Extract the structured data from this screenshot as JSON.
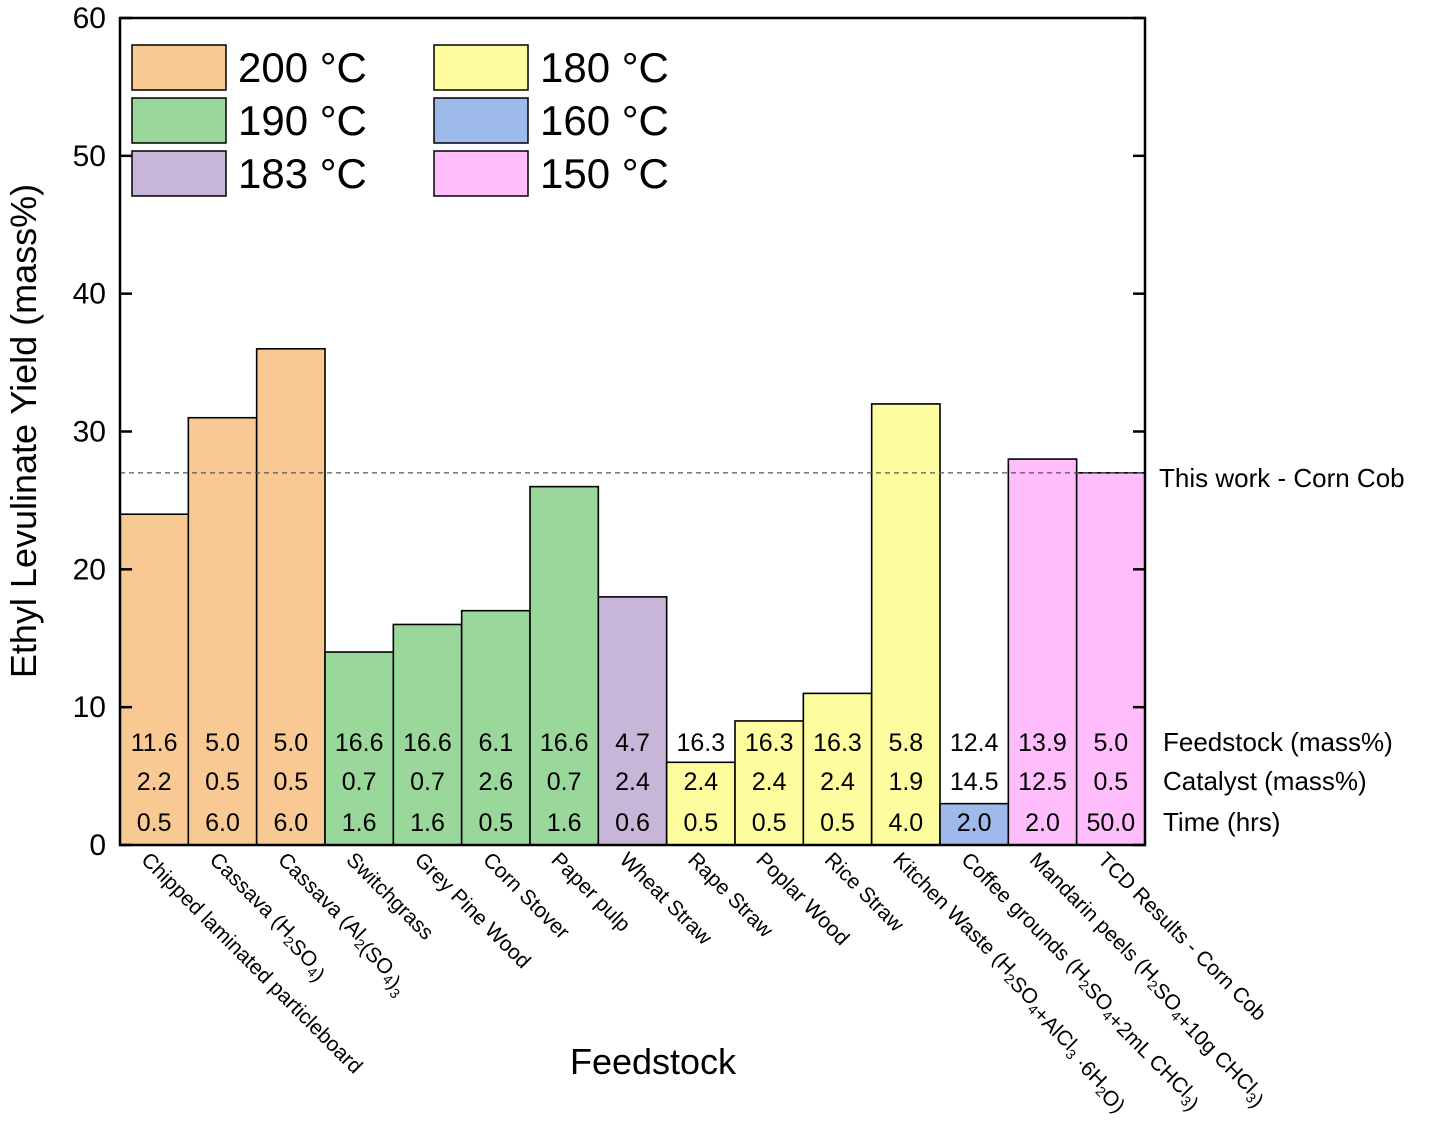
{
  "chart_data": {
    "type": "bar",
    "xlabel": "Feedstock",
    "ylabel": "Ethyl Levulinate Yield (mass%)",
    "ylim": [
      0,
      60
    ],
    "yticks": [
      "0",
      "10",
      "20",
      "30",
      "40",
      "50",
      "60"
    ],
    "categories": [
      "Chipped laminated particleboard",
      "Cassava (H2SO4)",
      "Cassava (Al2(SO4)3",
      "Switchgrass",
      "Grey Pine Wood",
      "Corn Stover",
      "Paper pulp",
      "Wheat Straw",
      "Rape Straw",
      "Poplar Wood",
      "Rice Straw",
      "Kitchen Waste (H2SO4+AlCl3 ·6H2O)",
      "Coffee grounds (H2SO4+2mL CHCl3)",
      "Mandarin peels (H2SO4+10g CHCl3)",
      "TCD Results - Corn Cob"
    ],
    "values": [
      24,
      31,
      36,
      14,
      16,
      17,
      26,
      18,
      6,
      9,
      11,
      32,
      3,
      28,
      27
    ],
    "temperature_groups": [
      "200 °C",
      "200 °C",
      "200 °C",
      "190 °C",
      "190 °C",
      "190 °C",
      "190 °C",
      "183 °C",
      "180 °C",
      "180 °C",
      "180 °C",
      "180 °C",
      "160 °C",
      "150 °C",
      "150 °C"
    ],
    "legend": {
      "placement": "top-left",
      "entries": [
        {
          "name": "200 °C",
          "color": "#F9C993"
        },
        {
          "name": "180 °C",
          "color": "#FDFDA0"
        },
        {
          "name": "190 °C",
          "color": "#9AD79A"
        },
        {
          "name": "160 °C",
          "color": "#9DBAEB"
        },
        {
          "name": "183 °C",
          "color": "#C8B6D8"
        },
        {
          "name": "150 °C",
          "color": "#FFBEFB"
        }
      ]
    },
    "reference_line": {
      "value": 27,
      "label": "This work - Corn Cob"
    },
    "annotation_rows": [
      {
        "label": "Feedstock (mass%)",
        "values": [
          "11.6",
          "5.0",
          "5.0",
          "16.6",
          "16.6",
          "6.1",
          "16.6",
          "4.7",
          "16.3",
          "16.3",
          "16.3",
          "5.8",
          "12.4",
          "13.9",
          "5.0"
        ]
      },
      {
        "label": "Catalyst (mass%)",
        "values": [
          "2.2",
          "0.5",
          "0.5",
          "0.7",
          "0.7",
          "2.6",
          "0.7",
          "2.4",
          "2.4",
          "2.4",
          "2.4",
          "1.9",
          "14.5",
          "12.5",
          "0.5"
        ]
      },
      {
        "label": "Time (hrs)",
        "values": [
          "0.5",
          "6.0",
          "6.0",
          "1.6",
          "1.6",
          "0.5",
          "1.6",
          "0.6",
          "0.5",
          "0.5",
          "0.5",
          "4.0",
          "2.0",
          "2.0",
          "50.0"
        ]
      }
    ],
    "grid": false
  }
}
